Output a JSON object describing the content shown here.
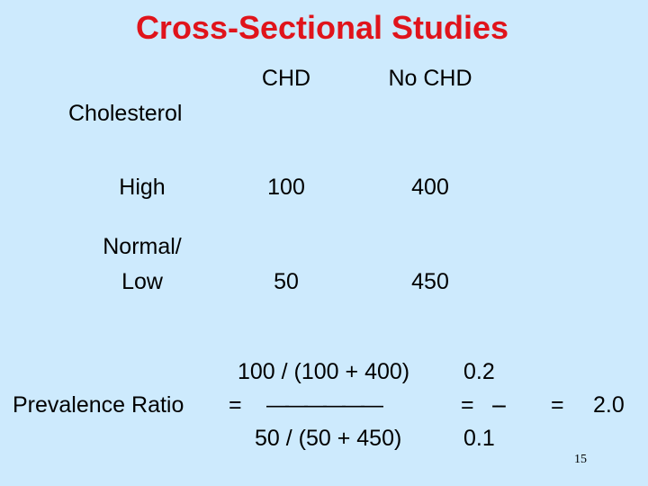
{
  "slide": {
    "title": "Cross-Sectional Studies",
    "page_number": "15"
  },
  "table": {
    "col_headers": [
      "CHD",
      "No CHD"
    ],
    "row_group_label": "Cholesterol",
    "rows": [
      {
        "label": "High",
        "values": [
          "100",
          "400"
        ]
      },
      {
        "label_line1": "Normal/",
        "label_line2": "Low",
        "values": [
          "50",
          "450"
        ]
      }
    ]
  },
  "formula": {
    "label": "Prevalence Ratio",
    "equals": "=",
    "numerator": "100 / (100 + 400)",
    "fraction_bar": "——————",
    "denominator": "50 / (50 + 450)",
    "equals2": "=",
    "small_numerator": "0.2",
    "small_bar": "---",
    "small_denominator": "0.1",
    "equals3": "=",
    "result": "2.0"
  }
}
